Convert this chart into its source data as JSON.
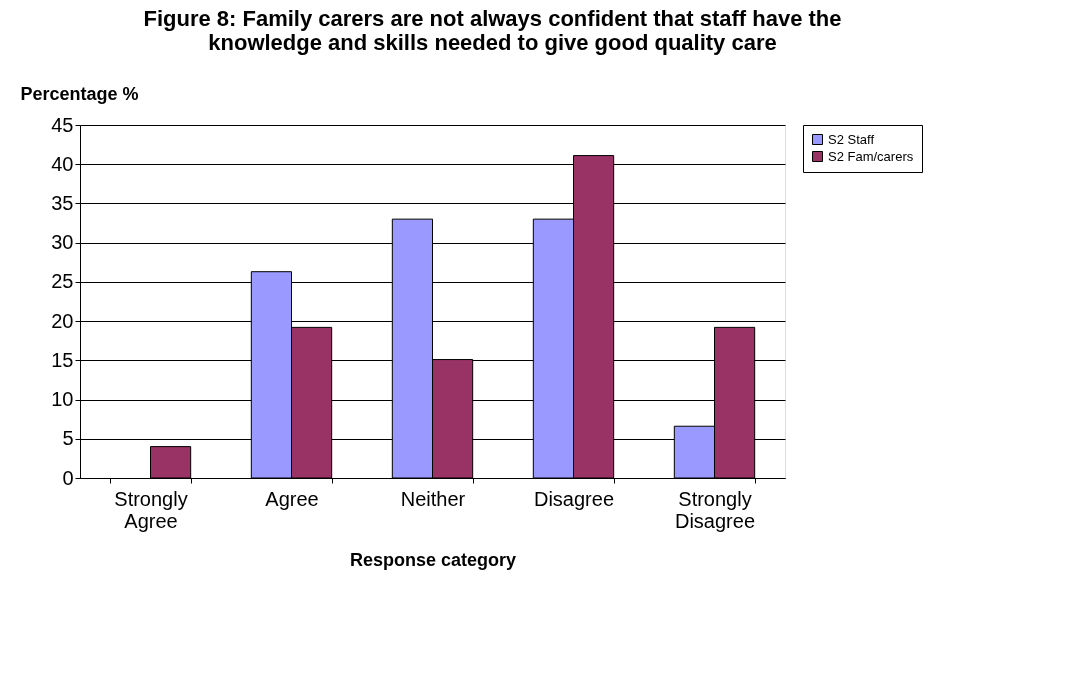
{
  "chart_data": {
    "type": "bar",
    "title": "Figure 8: Family carers are not always confident that staff have the knowledge and skills needed to give good quality care",
    "xlabel": "Response category",
    "ylabel": "Percentage %",
    "categories": [
      "Strongly Agree",
      "Agree",
      "Neither",
      "Disagree",
      "Strongly Disagree"
    ],
    "series": [
      {
        "name": "S2 Staff",
        "color": "#9999ff",
        "values": [
          0,
          26.3,
          33,
          33,
          6.6
        ]
      },
      {
        "name": "S2 Fam/carers",
        "color": "#993366",
        "values": [
          4,
          19.2,
          15.1,
          41.1,
          19.2
        ]
      }
    ],
    "ylim": [
      0,
      45
    ],
    "yticks": [
      0,
      5,
      10,
      15,
      20,
      25,
      30,
      35,
      40,
      45
    ],
    "grid": "y",
    "legend": "right"
  }
}
